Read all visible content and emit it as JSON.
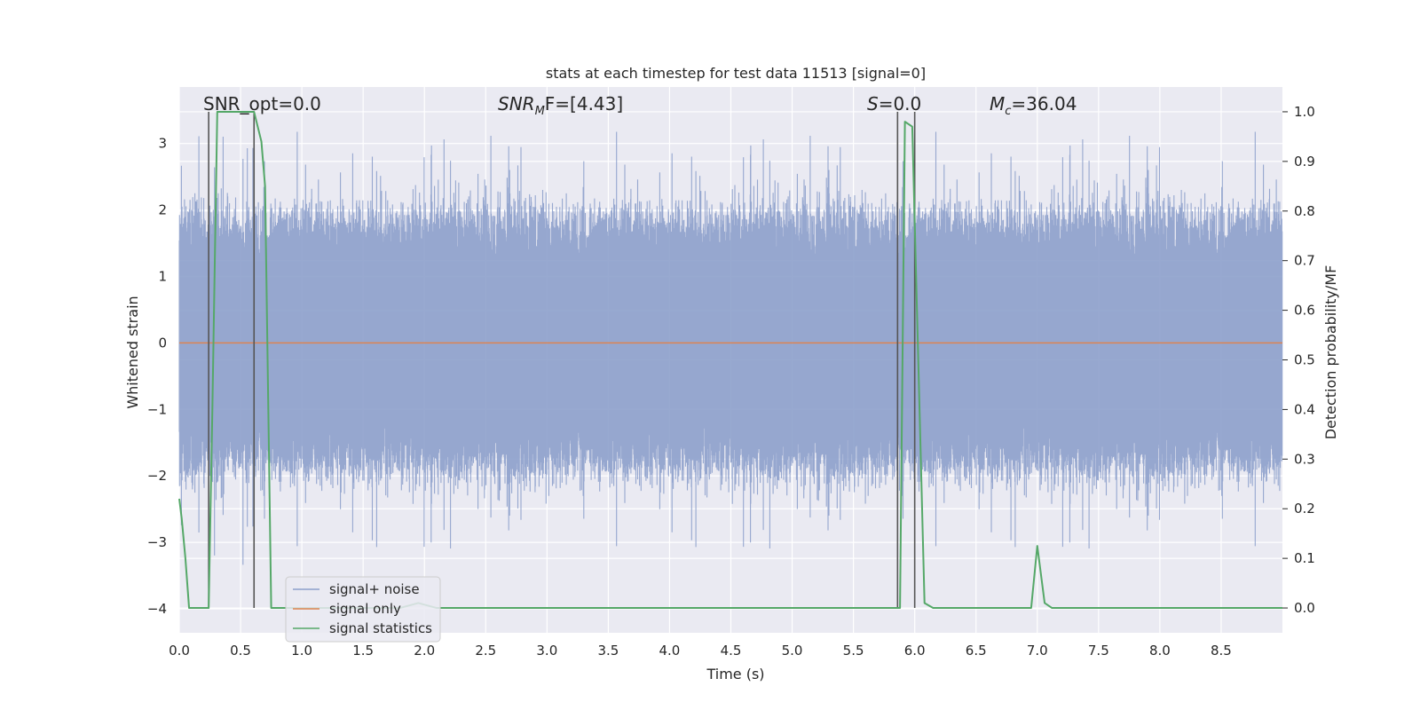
{
  "chart_data": {
    "type": "line",
    "title": "stats at each timestep for test data 11513 [signal=0]",
    "xlabel": "Time (s)",
    "ylabel": "Whitened strain",
    "ylabel_right": "Detection probability/MF",
    "xlim": [
      0,
      9.0
    ],
    "ylim": [
      -4.36,
      3.85
    ],
    "ylim_right": [
      -0.05,
      1.05
    ],
    "x_ticks": [
      0.0,
      0.5,
      1.0,
      1.5,
      2.0,
      2.5,
      3.0,
      3.5,
      4.0,
      4.5,
      5.0,
      5.5,
      6.0,
      6.5,
      7.0,
      7.5,
      8.0,
      8.5
    ],
    "x_tick_labels": [
      "0.0",
      "0.5",
      "1.0",
      "1.5",
      "2.0",
      "2.5",
      "3.0",
      "3.5",
      "4.0",
      "4.5",
      "5.0",
      "5.5",
      "6.0",
      "6.5",
      "7.0",
      "7.5",
      "8.0",
      "8.5"
    ],
    "y_ticks": [
      -4,
      -3,
      -2,
      -1,
      0,
      1,
      2,
      3
    ],
    "y_tick_labels": [
      "−4",
      "−3",
      "−2",
      "−1",
      "0",
      "1",
      "2",
      "3"
    ],
    "y_right_ticks": [
      0.0,
      0.1,
      0.2,
      0.3,
      0.4,
      0.5,
      0.6,
      0.7,
      0.8,
      0.9,
      1.0
    ],
    "y_right_tick_labels": [
      "0.0",
      "0.1",
      "0.2",
      "0.3",
      "0.4",
      "0.5",
      "0.6",
      "0.7",
      "0.8",
      "0.9",
      "1.0"
    ],
    "grid": true,
    "legend_position": "lower-left",
    "annotations": {
      "snr_opt": "SNR_opt=0.0",
      "snr_mf_prefix": "SNR",
      "snr_mf_sub": "M",
      "snr_mf_suffix": "F=[4.43]",
      "s_var": "S",
      "s_value": "=0.0",
      "mc_var": "M",
      "mc_sub": "c",
      "mc_value": "=36.04"
    },
    "colors": {
      "noise": "#8da0cb",
      "signal": "#dd8452",
      "stats": "#55a868",
      "background": "#eaeaf2",
      "marker": "#555555"
    },
    "series": [
      {
        "name": "signal+ noise",
        "kind": "noise-band",
        "samples_per_second": 400,
        "band_core": 1.9,
        "band_extreme": 3.4
      },
      {
        "name": "signal only",
        "x": [
          0.0,
          9.0
        ],
        "y": [
          0.0,
          0.0
        ]
      },
      {
        "name": "signal statistics",
        "axis": "right",
        "x": [
          0.0,
          0.02,
          0.05,
          0.08,
          0.24,
          0.27,
          0.31,
          0.61,
          0.63,
          0.67,
          0.7,
          0.75,
          0.82,
          1.8,
          1.95,
          2.1,
          5.85,
          5.88,
          5.92,
          5.98,
          6.08,
          6.15,
          6.95,
          7.0,
          7.06,
          7.12,
          7.4,
          7.5,
          9.0
        ],
        "y": [
          0.22,
          0.18,
          0.1,
          0.0,
          0.0,
          0.4,
          1.0,
          1.0,
          0.98,
          0.94,
          0.85,
          0.0,
          0.0,
          0.0,
          0.01,
          0.0,
          0.0,
          0.0,
          0.98,
          0.97,
          0.01,
          0.0,
          0.0,
          0.125,
          0.01,
          0.0,
          0.0,
          0.0,
          0.0
        ]
      }
    ],
    "vertical_markers": [
      0.24,
      0.61,
      5.86,
      6.0
    ],
    "marker_range": [
      0.0,
      1.0
    ]
  }
}
